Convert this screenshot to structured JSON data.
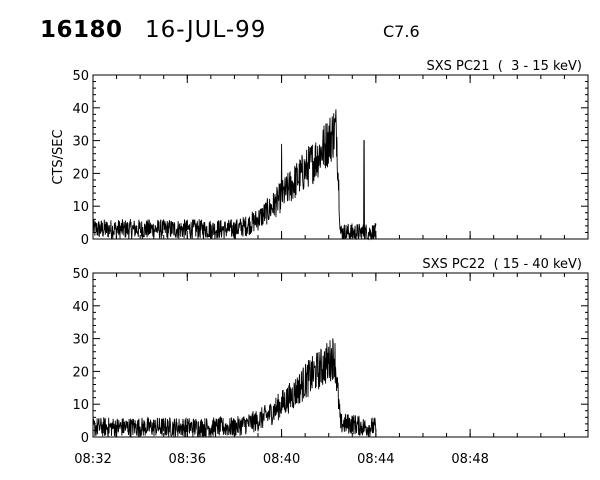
{
  "header": {
    "event_id": "16180",
    "date": "16-JUL-99",
    "flare_class": "C7.6"
  },
  "chart_data": [
    {
      "type": "line",
      "title": "SXS PC21  (  3 - 15 keV)",
      "ylabel": "CTS/SEC",
      "xlabel": "",
      "xlim": [
        "08:32",
        "08:53"
      ],
      "ylim": [
        0,
        50
      ],
      "yticks": [
        0,
        10,
        20,
        30,
        40,
        50
      ],
      "xticks": [
        "08:32",
        "08:36",
        "08:40",
        "08:44",
        "08:48"
      ],
      "grid": false,
      "series": [
        {
          "x": [
            "08:32",
            "08:33",
            "08:34",
            "08:35",
            "08:36",
            "08:37",
            "08:38",
            "08:38:30",
            "08:39",
            "08:39:30",
            "08:40",
            "08:40:30",
            "08:41",
            "08:41:30",
            "08:42",
            "08:42:15",
            "08:42:20",
            "08:42:30",
            "08:43",
            "08:43:30",
            "08:44"
          ],
          "values": [
            3,
            3,
            3,
            3,
            3,
            3,
            3,
            4,
            6,
            9,
            13,
            17,
            21,
            25,
            30,
            33,
            33,
            2,
            2,
            2,
            2
          ]
        }
      ],
      "annotations": [
        {
          "x": "08:40",
          "y": 29
        },
        {
          "x": "08:43:30",
          "y": 30
        }
      ]
    },
    {
      "type": "line",
      "title": "SXS PC22  ( 15 - 40 keV)",
      "ylabel": "",
      "xlabel": "",
      "xlim": [
        "08:32",
        "08:53"
      ],
      "ylim": [
        0,
        50
      ],
      "yticks": [
        0,
        10,
        20,
        30,
        40,
        50
      ],
      "xticks": [
        "08:32",
        "08:36",
        "08:40",
        "08:44",
        "08:48"
      ],
      "grid": false,
      "series": [
        {
          "x": [
            "08:32",
            "08:33",
            "08:34",
            "08:35",
            "08:36",
            "08:37",
            "08:38",
            "08:38:30",
            "08:39",
            "08:39:30",
            "08:40",
            "08:40:30",
            "08:41",
            "08:41:30",
            "08:42",
            "08:42:15",
            "08:42:30",
            "08:43",
            "08:43:30",
            "08:44"
          ],
          "values": [
            3,
            3,
            3,
            3,
            3,
            3,
            3,
            4,
            5,
            7,
            10,
            13,
            17,
            20,
            23,
            25,
            4,
            4,
            3,
            3
          ]
        }
      ]
    }
  ]
}
